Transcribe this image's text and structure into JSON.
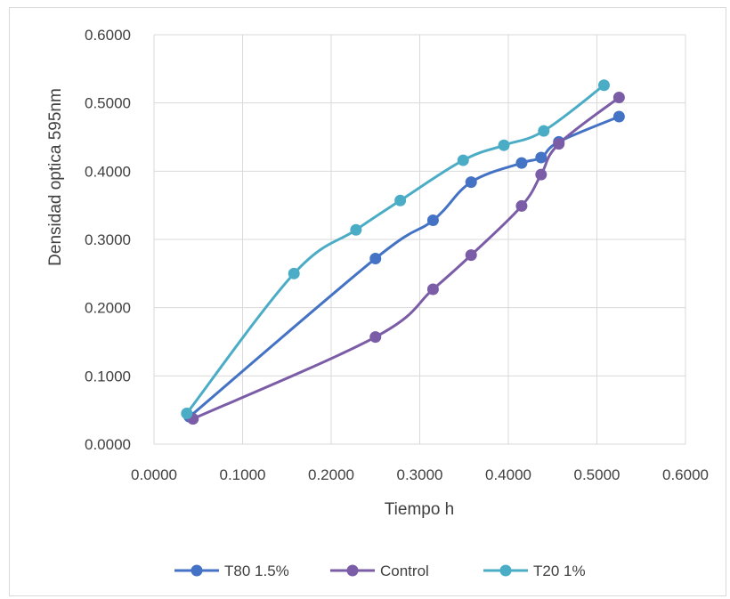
{
  "chart_data": {
    "type": "line",
    "title": "",
    "xlabel": "Tiempo h",
    "ylabel": "Densidad optica 595nm",
    "xlim": [
      0,
      0.6
    ],
    "ylim": [
      0,
      0.6
    ],
    "x_ticks": [
      "0.0000",
      "0.1000",
      "0.2000",
      "0.3000",
      "0.4000",
      "0.5000",
      "0.6000"
    ],
    "y_ticks": [
      "0.0000",
      "0.1000",
      "0.2000",
      "0.3000",
      "0.4000",
      "0.5000",
      "0.6000"
    ],
    "grid": "both",
    "legend_position": "bottom",
    "series": [
      {
        "name": "T80 1.5%",
        "color": "#4472c4",
        "points": [
          [
            0.04,
            0.04
          ],
          [
            0.25,
            0.272
          ],
          [
            0.315,
            0.328
          ],
          [
            0.358,
            0.384
          ],
          [
            0.415,
            0.412
          ],
          [
            0.437,
            0.42
          ],
          [
            0.457,
            0.443
          ],
          [
            0.525,
            0.48
          ]
        ]
      },
      {
        "name": "Control",
        "color": "#7a5ca7",
        "points": [
          [
            0.044,
            0.037
          ],
          [
            0.25,
            0.157
          ],
          [
            0.315,
            0.227
          ],
          [
            0.358,
            0.277
          ],
          [
            0.415,
            0.349
          ],
          [
            0.437,
            0.395
          ],
          [
            0.457,
            0.44
          ],
          [
            0.525,
            0.508
          ]
        ]
      },
      {
        "name": "T20 1%",
        "color": "#4bacc6",
        "points": [
          [
            0.037,
            0.045
          ],
          [
            0.158,
            0.25
          ],
          [
            0.228,
            0.314
          ],
          [
            0.278,
            0.357
          ],
          [
            0.349,
            0.416
          ],
          [
            0.395,
            0.438
          ],
          [
            0.44,
            0.459
          ],
          [
            0.508,
            0.526
          ]
        ]
      }
    ]
  }
}
